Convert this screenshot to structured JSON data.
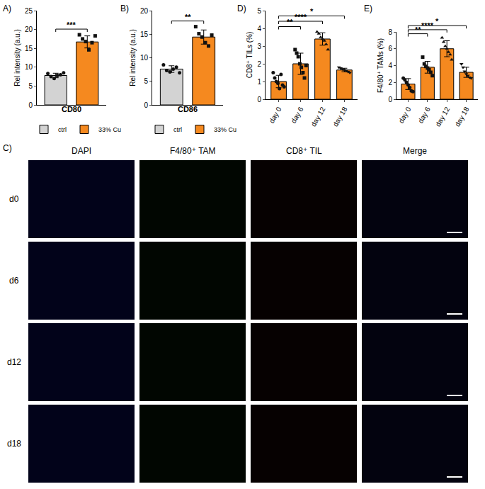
{
  "chart_data": [
    {
      "label": "A)",
      "type": "bar",
      "y_label": "Rel intensity (a.u.)",
      "x_label": "CD80",
      "categories": [
        "ctrl",
        "33% Cu"
      ],
      "values": [
        7.8,
        16.7
      ],
      "errors": [
        0.6,
        1.6
      ],
      "points": [
        [
          8.3,
          7.5,
          7.0,
          7.8,
          8.0,
          8.5
        ],
        [
          18.6,
          17.5,
          16.8,
          14.6,
          16.5,
          18.3
        ]
      ],
      "colors": [
        "#d3d3d3",
        "#f5891f"
      ],
      "ylim": [
        0,
        25
      ],
      "yticks": [
        0,
        5,
        10,
        15,
        20,
        25
      ],
      "tick_labels": "y",
      "legend": "bottom",
      "annotations": [
        {
          "from": 0,
          "to": 1,
          "text": "***"
        }
      ]
    },
    {
      "label": "B)",
      "type": "bar",
      "y_label": "Rel intensity (a.u.)",
      "x_label": "CD86",
      "categories": [
        "ctrl",
        "33% Cu"
      ],
      "values": [
        7.6,
        14.4
      ],
      "errors": [
        0.7,
        1.5
      ],
      "points": [
        [
          8.5,
          7.3,
          7.0,
          7.6,
          8.0,
          6.8
        ],
        [
          16.6,
          15.1,
          14.4,
          13.2,
          12.5,
          14.8
        ]
      ],
      "colors": [
        "#d3d3d3",
        "#f5891f"
      ],
      "ylim": [
        0,
        20
      ],
      "yticks": [
        0,
        5,
        10,
        15,
        20
      ],
      "tick_labels": "y",
      "legend": "bottom",
      "annotations": [
        {
          "from": 0,
          "to": 1,
          "text": "**"
        }
      ]
    },
    {
      "label": "D)",
      "type": "bar",
      "y_label": "CD8⁺ TILs (%)",
      "categories": [
        "day 0",
        "day 6",
        "day 12",
        "day 18"
      ],
      "values": [
        1.0,
        2.0,
        3.4,
        1.65
      ],
      "errors": [
        0.35,
        0.6,
        0.35,
        0.1
      ],
      "points": [
        [
          1.5,
          1.2,
          1.0,
          0.9,
          0.6,
          1.4,
          0.8,
          0.7
        ],
        [
          2.8,
          2.6,
          2.4,
          2.0,
          1.8,
          1.5,
          1.2,
          1.9
        ],
        [
          3.8,
          3.7,
          3.5,
          3.4,
          3.3,
          3.1,
          2.8
        ],
        [
          1.8,
          1.75,
          1.7,
          1.65,
          1.6,
          1.55,
          1.5
        ]
      ],
      "colors": [
        "#f5891f",
        "#f5891f",
        "#f5891f",
        "#f5891f"
      ],
      "ylim": [
        0,
        5
      ],
      "yticks": [
        0,
        1,
        2,
        3,
        4,
        5
      ],
      "annotations": [
        {
          "from": 0,
          "to": 1,
          "text": "**"
        },
        {
          "from": 0,
          "to": 2,
          "text": "****"
        },
        {
          "from": 0,
          "to": 3,
          "text": "*"
        }
      ]
    },
    {
      "label": "E)",
      "type": "bar",
      "y_label": "F4/80⁺ TAMs (%)",
      "categories": [
        "day 0",
        "day 6",
        "day 12",
        "day 18"
      ],
      "values": [
        1.8,
        3.8,
        6.0,
        3.2
      ],
      "errors": [
        0.65,
        0.7,
        0.95,
        0.6
      ],
      "points": [
        [
          2.5,
          2.3,
          2.0,
          1.7,
          1.4,
          1.0,
          0.9
        ],
        [
          5.0,
          4.2,
          3.9,
          3.7,
          3.5,
          3.2,
          2.8
        ],
        [
          7.3,
          6.8,
          6.3,
          6.0,
          5.6,
          5.3,
          4.7
        ],
        [
          4.2,
          3.8,
          3.3,
          3.0,
          2.8,
          2.6,
          2.5
        ]
      ],
      "colors": [
        "#f5891f",
        "#f5891f",
        "#f5891f",
        "#f5891f"
      ],
      "ylim": [
        0,
        8
      ],
      "yticks": [
        0,
        2,
        4,
        6,
        8
      ],
      "annotations": [
        {
          "from": 0,
          "to": 1,
          "text": "**"
        },
        {
          "from": 0,
          "to": 2,
          "text": "****"
        },
        {
          "from": 0,
          "to": 3,
          "text": "*"
        }
      ]
    }
  ],
  "image_panel": {
    "label": "C)",
    "columns": [
      "DAPI",
      "F4/80⁺ TAM",
      "CD8⁺ TIL",
      "Merge"
    ],
    "rows": [
      "d0",
      "d6",
      "d12",
      "d18"
    ]
  }
}
